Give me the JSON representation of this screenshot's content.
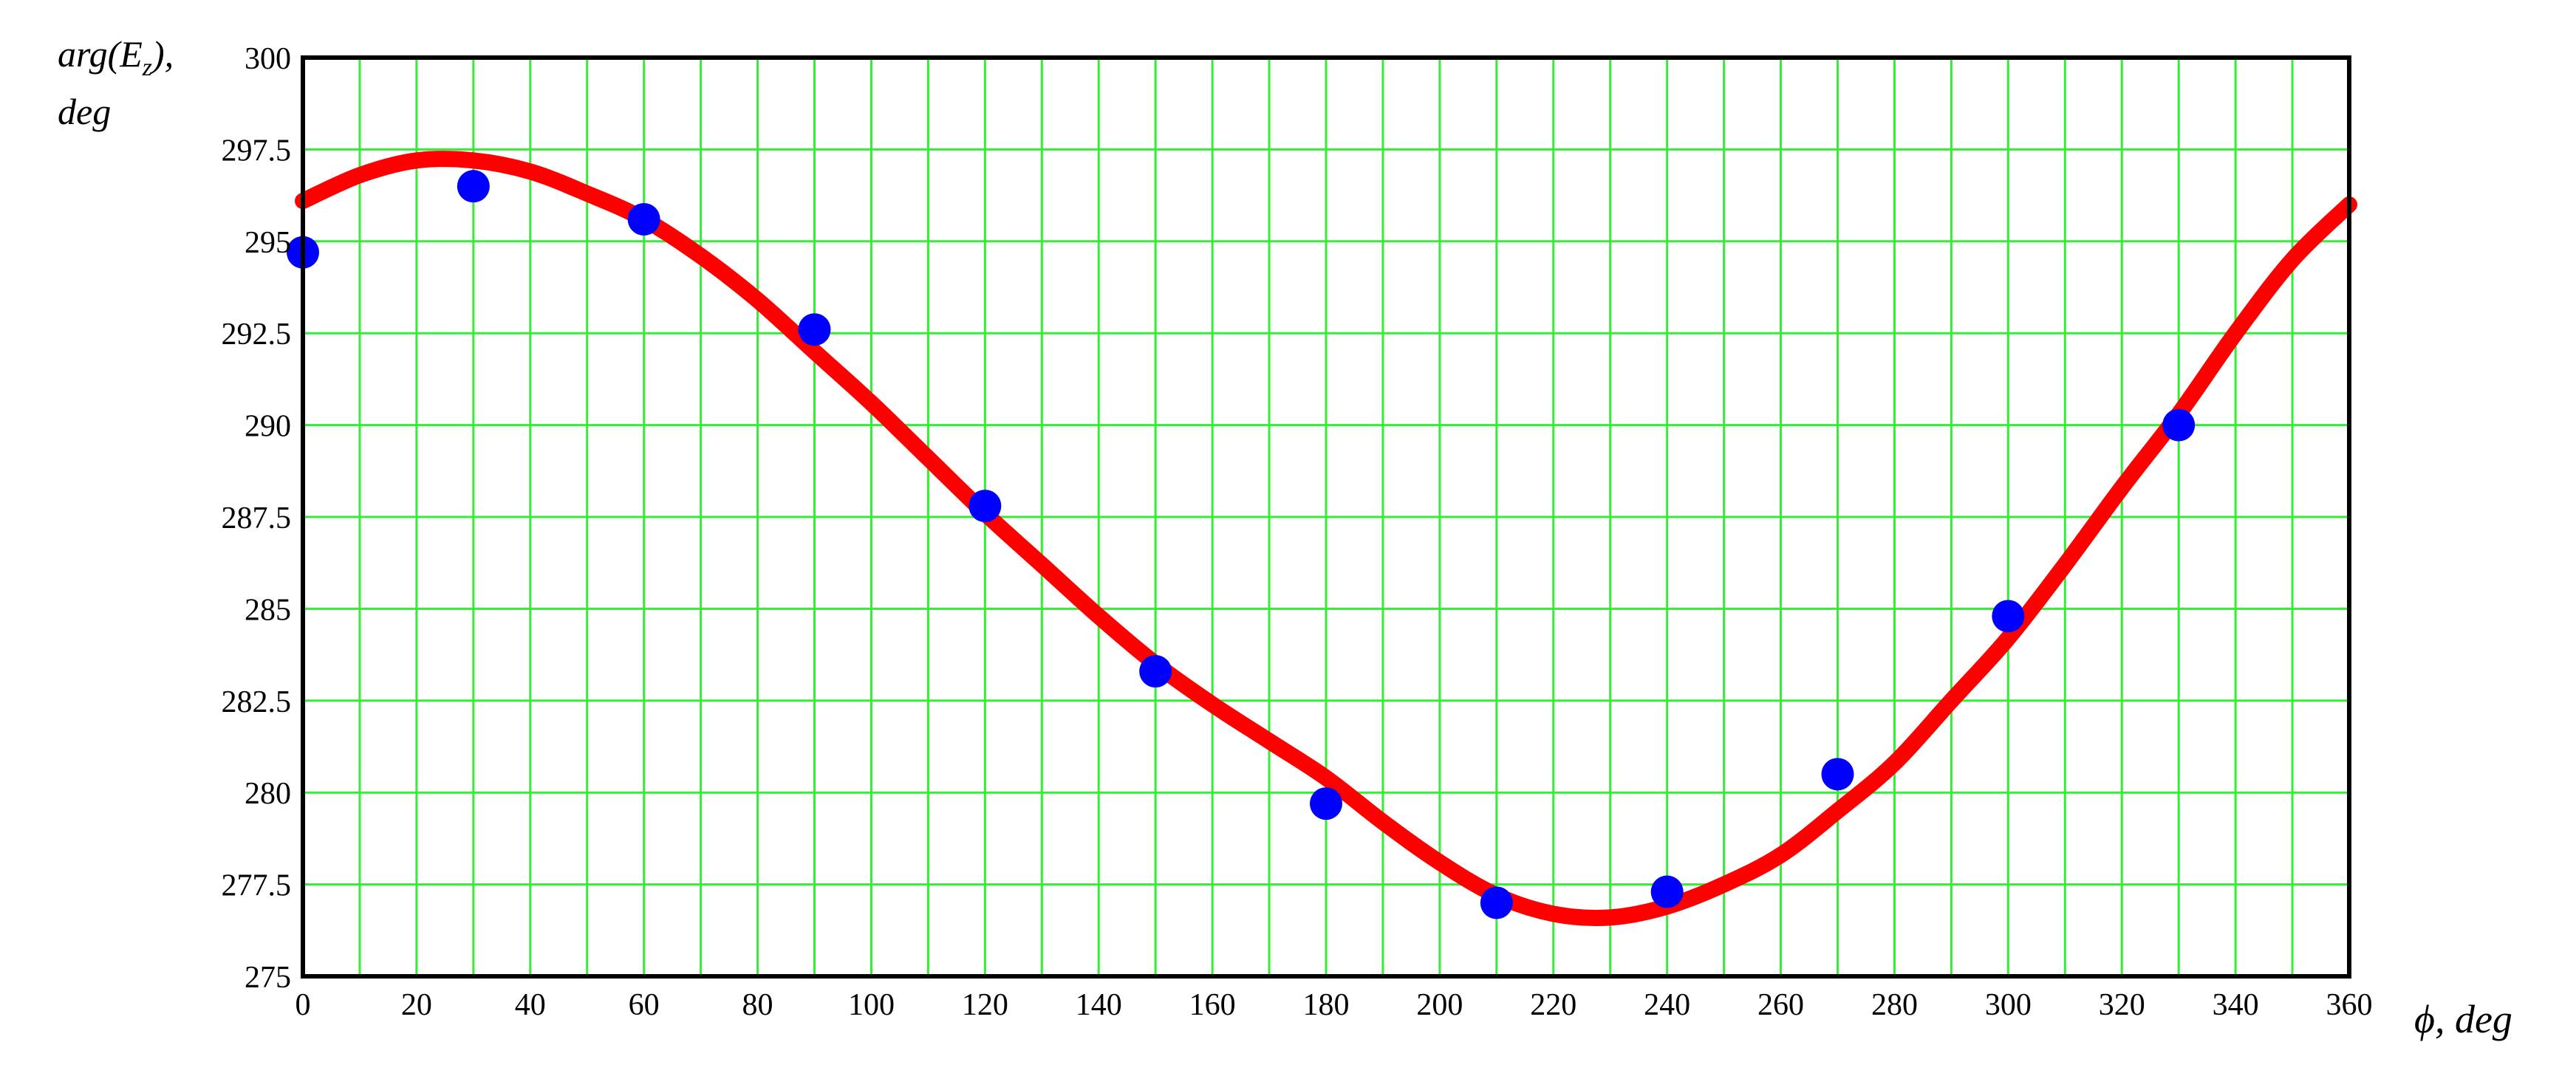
{
  "chart_data": {
    "type": "line",
    "title": "",
    "xlabel": "ϕ, deg",
    "ylabel_line1": "arg(E",
    "ylabel_sub": "z",
    "ylabel_line1_end": "),",
    "ylabel_line2": "deg",
    "xlim": [
      0,
      360
    ],
    "ylim": [
      275,
      300
    ],
    "x_ticks": [
      0,
      20,
      40,
      60,
      80,
      100,
      120,
      140,
      160,
      180,
      200,
      220,
      240,
      260,
      280,
      300,
      320,
      340,
      360
    ],
    "y_ticks": [
      275,
      277.5,
      280,
      282.5,
      285,
      287.5,
      290,
      292.5,
      295,
      297.5,
      300
    ],
    "x_tick_labels": [
      "0",
      "20",
      "40",
      "60",
      "80",
      "100",
      "120",
      "140",
      "160",
      "180",
      "200",
      "220",
      "240",
      "260",
      "280",
      "300",
      "320",
      "340",
      "360"
    ],
    "y_tick_labels": [
      "275",
      "277.5",
      "280",
      "282.5",
      "285",
      "287.5",
      "290",
      "292.5",
      "295",
      "297.5",
      "300"
    ],
    "grid": true,
    "colors": {
      "grid": "#33ee33",
      "curve": "#ff0000",
      "points": "#0000ff",
      "frame": "#000000"
    },
    "series": [
      {
        "kind": "line",
        "x": [
          0,
          10,
          20,
          30,
          40,
          50,
          60,
          70,
          80,
          90,
          100,
          110,
          120,
          130,
          140,
          150,
          160,
          170,
          180,
          190,
          200,
          210,
          220,
          230,
          240,
          250,
          260,
          270,
          280,
          290,
          300,
          310,
          320,
          330,
          340,
          350,
          360
        ],
        "y": [
          296.1,
          296.8,
          297.2,
          297.2,
          296.9,
          296.3,
          295.6,
          294.6,
          293.4,
          292.0,
          290.6,
          289.1,
          287.6,
          286.2,
          284.8,
          283.5,
          282.4,
          281.4,
          280.4,
          279.2,
          278.1,
          277.2,
          276.7,
          276.6,
          276.9,
          277.5,
          278.3,
          279.5,
          280.8,
          282.5,
          284.2,
          286.2,
          288.3,
          290.3,
          292.5,
          294.5,
          296.0
        ]
      },
      {
        "kind": "scatter",
        "x": [
          0,
          30,
          60,
          90,
          120,
          150,
          180,
          210,
          240,
          270,
          300,
          330
        ],
        "y": [
          294.7,
          296.5,
          295.6,
          292.6,
          287.8,
          283.3,
          279.7,
          277.0,
          277.3,
          280.5,
          284.8,
          290.0
        ]
      }
    ]
  }
}
